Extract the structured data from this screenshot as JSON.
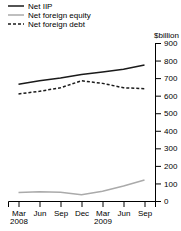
{
  "chart_data": {
    "type": "line",
    "ylabel": "$billion",
    "categories": [
      "Mar\n2008",
      "Jun",
      "Sep",
      "Dec",
      "Mar\n2009",
      "Jun",
      "Sep"
    ],
    "series": [
      {
        "name": "Net IIP",
        "color": "#1a1a1a",
        "line_style": "solid",
        "values": [
          665,
          685,
          700,
          720,
          735,
          750,
          775
        ]
      },
      {
        "name": "Net foreign equity",
        "color": "#aaaaaa",
        "line_style": "solid",
        "values": [
          48,
          52,
          50,
          35,
          55,
          85,
          120
        ]
      },
      {
        "name": "Net foreign debt",
        "color": "#1a1a1a",
        "line_style": "dashed",
        "values": [
          610,
          625,
          645,
          685,
          670,
          645,
          640
        ]
      }
    ],
    "ylim": [
      0,
      900
    ],
    "yticks": [
      0,
      100,
      200,
      300,
      400,
      500,
      600,
      700,
      800,
      900
    ],
    "legend": "upper left",
    "grid": false
  }
}
